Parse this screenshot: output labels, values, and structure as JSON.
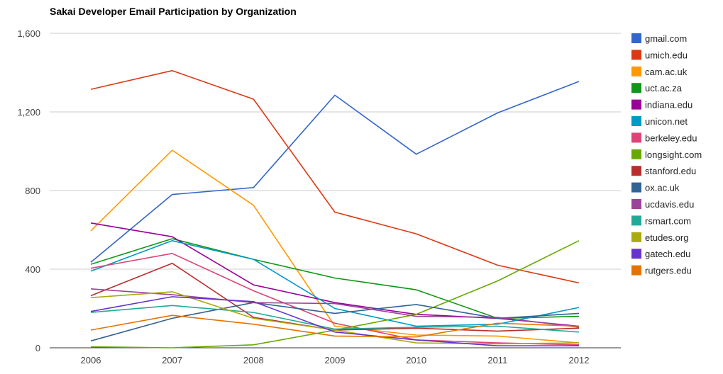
{
  "chart_data": {
    "type": "line",
    "title": "Sakai Developer Email Participation by Organization",
    "xlabel": "",
    "ylabel": "",
    "x": [
      "2006",
      "2007",
      "2008",
      "2009",
      "2010",
      "2011",
      "2012"
    ],
    "ylim": [
      0,
      1600
    ],
    "y_ticks": [
      0,
      400,
      800,
      1200,
      1600
    ],
    "y_tick_labels": [
      "0",
      "400",
      "800",
      "1,200",
      "1,600"
    ],
    "grid": true,
    "legend_position": "right",
    "series": [
      {
        "name": "gmail.com",
        "color": "#3366cc",
        "values": [
          435,
          780,
          815,
          1285,
          985,
          1195,
          1355
        ]
      },
      {
        "name": "umich.edu",
        "color": "#dc3912",
        "values": [
          1315,
          1410,
          1265,
          690,
          580,
          420,
          330
        ]
      },
      {
        "name": "cam.ac.uk",
        "color": "#ff9900",
        "values": [
          595,
          1005,
          725,
          110,
          65,
          60,
          25
        ]
      },
      {
        "name": "uct.ac.za",
        "color": "#109618",
        "values": [
          425,
          555,
          450,
          355,
          295,
          150,
          160
        ]
      },
      {
        "name": "indiana.edu",
        "color": "#990099",
        "values": [
          635,
          565,
          320,
          230,
          170,
          150,
          110
        ]
      },
      {
        "name": "unicon.net",
        "color": "#0099c6",
        "values": [
          390,
          545,
          450,
          200,
          110,
          120,
          205
        ]
      },
      {
        "name": "berkeley.edu",
        "color": "#dd4477",
        "values": [
          405,
          480,
          290,
          125,
          40,
          25,
          15
        ]
      },
      {
        "name": "longsight.com",
        "color": "#66aa00",
        "values": [
          5,
          0,
          15,
          90,
          170,
          340,
          545
        ]
      },
      {
        "name": "stanford.edu",
        "color": "#b82e2e",
        "values": [
          265,
          430,
          155,
          90,
          100,
          85,
          100
        ]
      },
      {
        "name": "ox.ac.uk",
        "color": "#316395",
        "values": [
          35,
          150,
          230,
          175,
          220,
          150,
          175
        ]
      },
      {
        "name": "ucdavis.edu",
        "color": "#994499",
        "values": [
          300,
          270,
          230,
          225,
          160,
          155,
          105
        ]
      },
      {
        "name": "rsmart.com",
        "color": "#22aa99",
        "values": [
          180,
          215,
          180,
          95,
          105,
          110,
          80
        ]
      },
      {
        "name": "etudes.org",
        "color": "#aaaa11",
        "values": [
          255,
          285,
          150,
          90,
          25,
          20,
          25
        ]
      },
      {
        "name": "gatech.edu",
        "color": "#6633cc",
        "values": [
          185,
          260,
          235,
          80,
          40,
          10,
          10
        ]
      },
      {
        "name": "rutgers.edu",
        "color": "#e67300",
        "values": [
          90,
          165,
          120,
          60,
          55,
          125,
          110
        ]
      }
    ]
  }
}
